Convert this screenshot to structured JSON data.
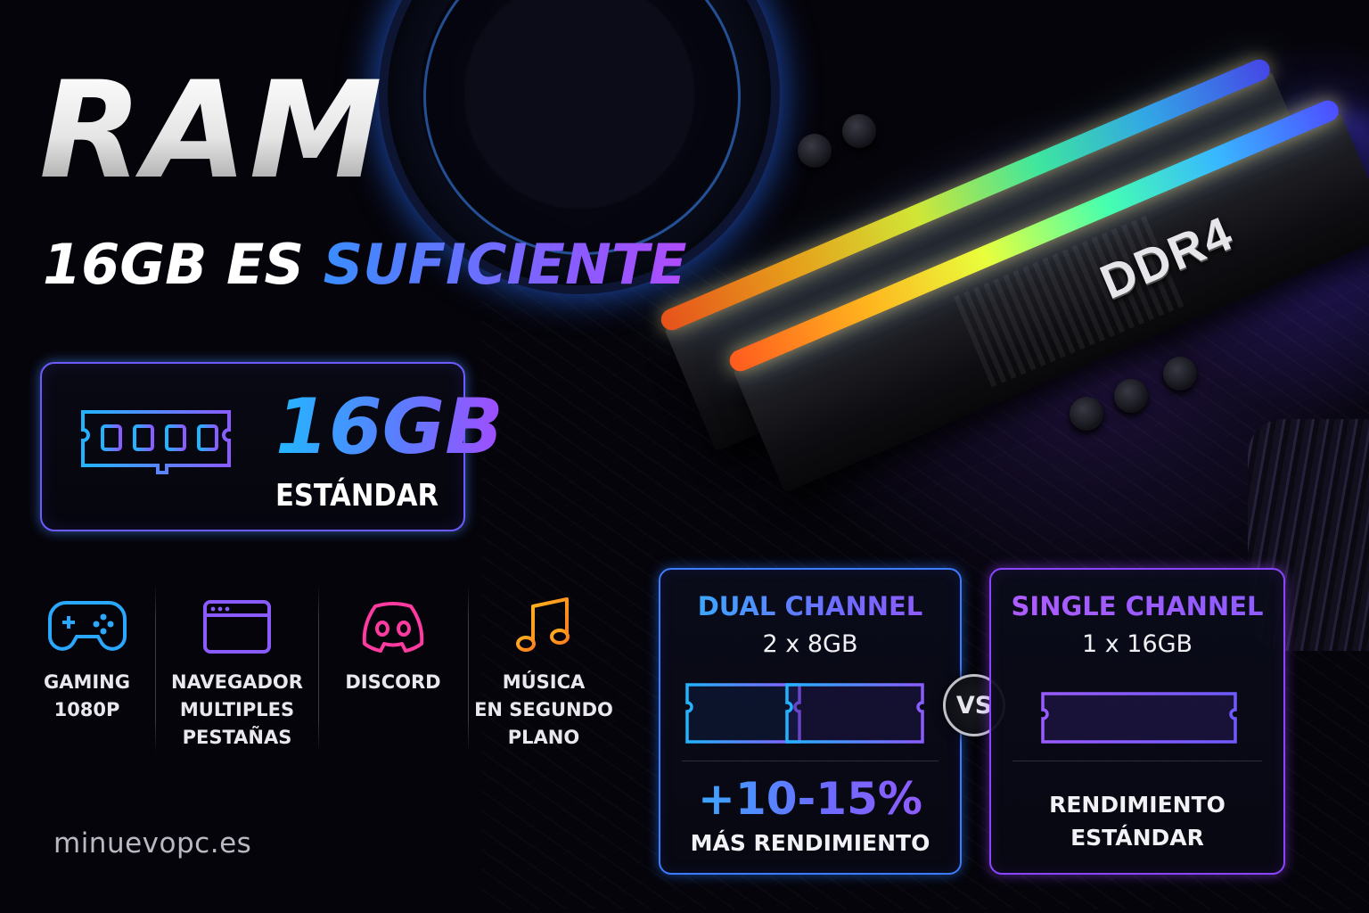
{
  "title": "RAM",
  "subtitle": {
    "lead": "16GB ES",
    "highlight": "SUFICIENTE"
  },
  "hero_card": {
    "capacity": "16GB",
    "caption": "ESTÁNDAR"
  },
  "uses": [
    {
      "icon": "gamepad-icon",
      "label": "GAMING\n1080P",
      "color": "#2aa8ff"
    },
    {
      "icon": "browser-window-icon",
      "label": "NAVEGADOR\nMULTIPLES\nPESTAÑAS",
      "color": "#8a5cff"
    },
    {
      "icon": "discord-icon",
      "label": "DISCORD",
      "color": "#ff3aa0"
    },
    {
      "icon": "music-note-icon",
      "label": "MÚSICA\nEN SEGUNDO\nPLANO",
      "color": "#ff9a1f"
    }
  ],
  "module_label": "DDR4",
  "comparison": {
    "dual": {
      "title": "DUAL CHANNEL",
      "config": "2 x 8GB",
      "gain": "+10-15%",
      "note": "MÁS RENDIMIENTO",
      "color": "#3d7bff"
    },
    "vs": "VS",
    "single": {
      "title": "SINGLE CHANNEL",
      "config": "1 x 16GB",
      "note": "RENDIMIENTO\nESTÁNDAR",
      "color": "#8c45ff"
    }
  },
  "website": "minuevopc.es"
}
